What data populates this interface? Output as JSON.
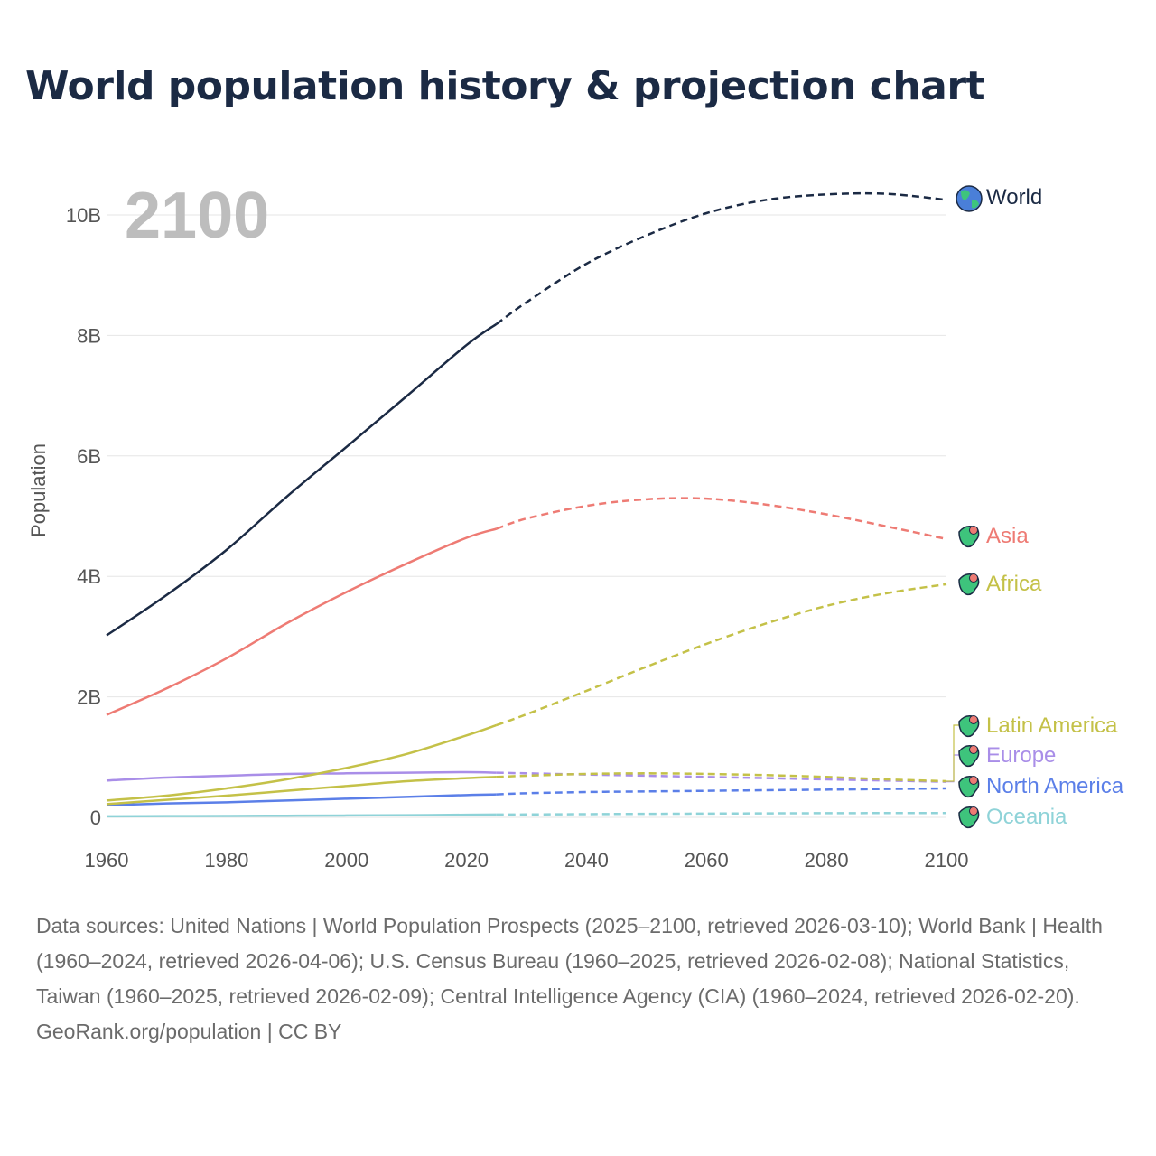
{
  "title": "World population history & projection chart",
  "chart_data": {
    "type": "line",
    "title": "World population history & projection chart",
    "ylabel": "Population",
    "xlabel": "",
    "year_indicator": "2100",
    "xlim": [
      1960,
      2100
    ],
    "ylim": [
      0,
      10.8
    ],
    "x_ticks": [
      "1960",
      "1980",
      "2000",
      "2020",
      "2040",
      "2060",
      "2080",
      "2100"
    ],
    "y_ticks": [
      {
        "value": 0,
        "label": "0"
      },
      {
        "value": 2,
        "label": "2B"
      },
      {
        "value": 4,
        "label": "4B"
      },
      {
        "value": 6,
        "label": "6B"
      },
      {
        "value": 8,
        "label": "8B"
      },
      {
        "value": 10,
        "label": "10B"
      }
    ],
    "units": "billions",
    "projection_start": 2025,
    "x": [
      1960,
      1970,
      1980,
      1990,
      2000,
      2010,
      2020,
      2025,
      2030,
      2040,
      2050,
      2060,
      2070,
      2080,
      2090,
      2100
    ],
    "series": [
      {
        "name": "World",
        "color": "#1b2a44",
        "icon": "globe-icon",
        "values": [
          3.02,
          3.69,
          4.44,
          5.32,
          6.15,
          6.99,
          7.84,
          8.19,
          8.55,
          9.19,
          9.66,
          10.03,
          10.25,
          10.34,
          10.35,
          10.25
        ]
      },
      {
        "name": "Asia",
        "color": "#ee7b74",
        "icon": "asia-map-icon",
        "values": [
          1.7,
          2.14,
          2.64,
          3.22,
          3.74,
          4.21,
          4.64,
          4.79,
          4.96,
          5.17,
          5.28,
          5.29,
          5.19,
          5.03,
          4.83,
          4.62
        ]
      },
      {
        "name": "Africa",
        "color": "#c4c148",
        "icon": "africa-map-icon",
        "values": [
          0.28,
          0.36,
          0.48,
          0.63,
          0.82,
          1.05,
          1.36,
          1.53,
          1.71,
          2.1,
          2.5,
          2.88,
          3.22,
          3.51,
          3.72,
          3.87
        ]
      },
      {
        "name": "Latin America",
        "color": "#c4c148",
        "icon": "latin-america-map-icon",
        "values": [
          0.22,
          0.29,
          0.36,
          0.44,
          0.52,
          0.6,
          0.65,
          0.67,
          0.69,
          0.72,
          0.73,
          0.72,
          0.7,
          0.67,
          0.63,
          0.6
        ]
      },
      {
        "name": "Europe",
        "color": "#a98ee8",
        "icon": "europe-map-icon",
        "values": [
          0.61,
          0.66,
          0.69,
          0.72,
          0.73,
          0.74,
          0.75,
          0.74,
          0.73,
          0.71,
          0.69,
          0.67,
          0.65,
          0.63,
          0.61,
          0.59
        ]
      },
      {
        "name": "North America",
        "color": "#5b7fe8",
        "icon": "north-america-map-icon",
        "values": [
          0.2,
          0.23,
          0.25,
          0.28,
          0.31,
          0.34,
          0.37,
          0.38,
          0.4,
          0.42,
          0.43,
          0.44,
          0.45,
          0.46,
          0.47,
          0.48
        ]
      },
      {
        "name": "Oceania",
        "color": "#8fd3d8",
        "icon": "oceania-map-icon",
        "values": [
          0.016,
          0.02,
          0.023,
          0.027,
          0.031,
          0.036,
          0.043,
          0.046,
          0.048,
          0.053,
          0.058,
          0.062,
          0.066,
          0.069,
          0.071,
          0.072
        ]
      }
    ]
  },
  "footer": {
    "sources": "Data sources: United Nations | World Population Prospects (2025–2100, retrieved 2026-03-10); World Bank | Health (1960–2024, retrieved 2026-04-06); U.S. Census Bureau (1960–2025, retrieved 2026-02-08); National Statistics, Taiwan (1960–2025, retrieved 2026-02-09); Central Intelligence Agency (CIA) (1960–2024, retrieved 2026-02-20).",
    "credit": "GeoRank.org/population | CC BY"
  }
}
